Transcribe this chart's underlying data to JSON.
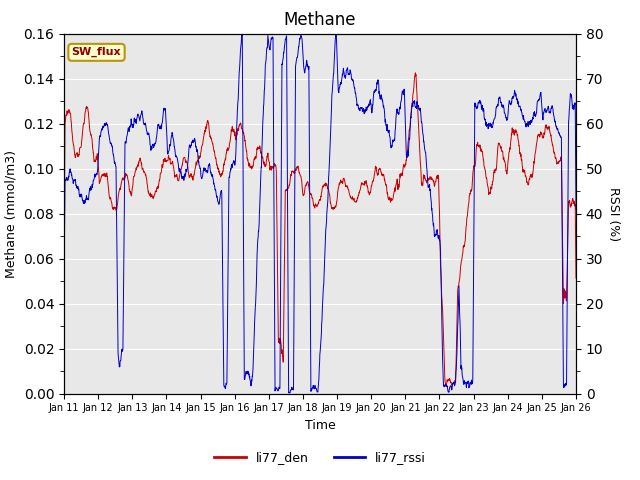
{
  "title": "Methane",
  "ylabel_left": "Methane (mmol/m3)",
  "ylabel_right": "RSSI (%)",
  "xlabel": "Time",
  "ylim_left": [
    0,
    0.16
  ],
  "ylim_right": [
    0,
    80
  ],
  "color_den": "#cc0000",
  "color_rssi": "#0000cc",
  "legend_labels": [
    "li77_den",
    "li77_rssi"
  ],
  "sw_flux_label": "SW_flux",
  "sw_flux_bg": "#ffffcc",
  "sw_flux_border": "#b8960c",
  "background_color": "#e8e8e8",
  "x_tick_labels": [
    "Jan 11",
    "Jan 12",
    "Jan 13",
    "Jan 14",
    "Jan 15",
    "Jan 16",
    "Jan 17",
    "Jan 18",
    "Jan 19",
    "Jan 20",
    "Jan 21",
    "Jan 22",
    "Jan 23",
    "Jan 24",
    "Jan 25",
    "Jan 26"
  ],
  "n_points": 2000,
  "title_fontsize": 12,
  "linewidth": 0.7
}
